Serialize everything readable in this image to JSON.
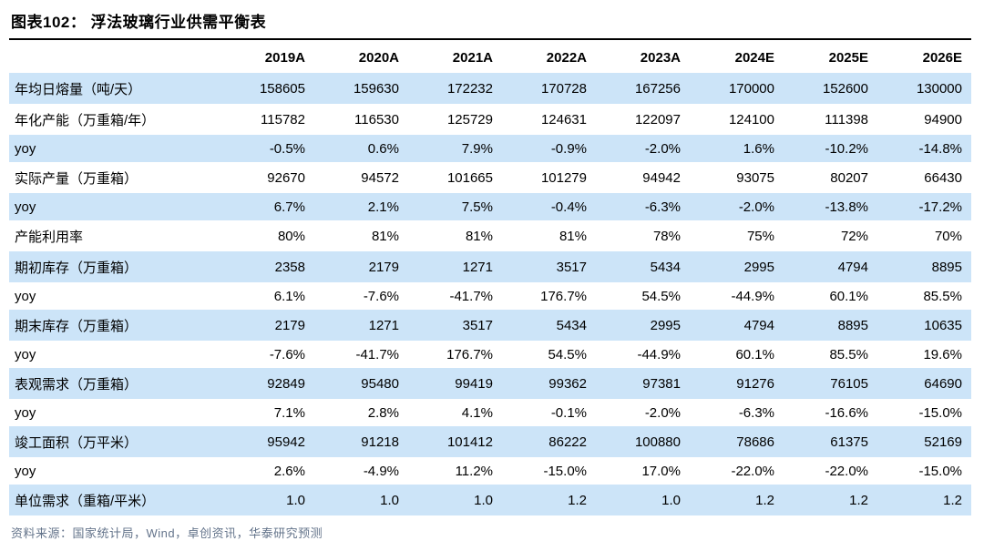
{
  "title": "图表102：  浮法玻璃行业供需平衡表",
  "source": "资料来源：国家统计局，Wind，卓创资讯，华泰研究预测",
  "colors": {
    "row_highlight": "#cce4f8",
    "title_rule": "#000000",
    "source_text": "#64748b",
    "text": "#000000"
  },
  "chart_data": {
    "type": "table",
    "title": "浮法玻璃行业供需平衡表",
    "columns": [
      "",
      "2019A",
      "2020A",
      "2021A",
      "2022A",
      "2023A",
      "2024E",
      "2025E",
      "2026E"
    ],
    "rows": [
      {
        "label": "年均日熔量（吨/天）",
        "values": [
          "158605",
          "159630",
          "172232",
          "170728",
          "167256",
          "170000",
          "152600",
          "130000"
        ]
      },
      {
        "label": "年化产能（万重箱/年）",
        "values": [
          "115782",
          "116530",
          "125729",
          "124631",
          "122097",
          "124100",
          "111398",
          "94900"
        ]
      },
      {
        "label": "yoy",
        "values": [
          "-0.5%",
          "0.6%",
          "7.9%",
          "-0.9%",
          "-2.0%",
          "1.6%",
          "-10.2%",
          "-14.8%"
        ]
      },
      {
        "label": "实际产量（万重箱）",
        "values": [
          "92670",
          "94572",
          "101665",
          "101279",
          "94942",
          "93075",
          "80207",
          "66430"
        ]
      },
      {
        "label": "yoy",
        "values": [
          "6.7%",
          "2.1%",
          "7.5%",
          "-0.4%",
          "-6.3%",
          "-2.0%",
          "-13.8%",
          "-17.2%"
        ]
      },
      {
        "label": "产能利用率",
        "values": [
          "80%",
          "81%",
          "81%",
          "81%",
          "78%",
          "75%",
          "72%",
          "70%"
        ]
      },
      {
        "label": "期初库存（万重箱）",
        "values": [
          "2358",
          "2179",
          "1271",
          "3517",
          "5434",
          "2995",
          "4794",
          "8895"
        ]
      },
      {
        "label": "yoy",
        "values": [
          "6.1%",
          "-7.6%",
          "-41.7%",
          "176.7%",
          "54.5%",
          "-44.9%",
          "60.1%",
          "85.5%"
        ]
      },
      {
        "label": "期末库存（万重箱）",
        "values": [
          "2179",
          "1271",
          "3517",
          "5434",
          "2995",
          "4794",
          "8895",
          "10635"
        ]
      },
      {
        "label": "yoy",
        "values": [
          "-7.6%",
          "-41.7%",
          "176.7%",
          "54.5%",
          "-44.9%",
          "60.1%",
          "85.5%",
          "19.6%"
        ]
      },
      {
        "label": "表观需求（万重箱）",
        "values": [
          "92849",
          "95480",
          "99419",
          "99362",
          "97381",
          "91276",
          "76105",
          "64690"
        ]
      },
      {
        "label": "yoy",
        "values": [
          "7.1%",
          "2.8%",
          "4.1%",
          "-0.1%",
          "-2.0%",
          "-6.3%",
          "-16.6%",
          "-15.0%"
        ]
      },
      {
        "label": "竣工面积（万平米）",
        "values": [
          "95942",
          "91218",
          "101412",
          "86222",
          "100880",
          "78686",
          "61375",
          "52169"
        ]
      },
      {
        "label": "yoy",
        "values": [
          "2.6%",
          "-4.9%",
          "11.2%",
          "-15.0%",
          "17.0%",
          "-22.0%",
          "-22.0%",
          "-15.0%"
        ]
      },
      {
        "label": "单位需求（重箱/平米）",
        "values": [
          "1.0",
          "1.0",
          "1.0",
          "1.2",
          "1.0",
          "1.2",
          "1.2",
          "1.2"
        ]
      }
    ]
  }
}
